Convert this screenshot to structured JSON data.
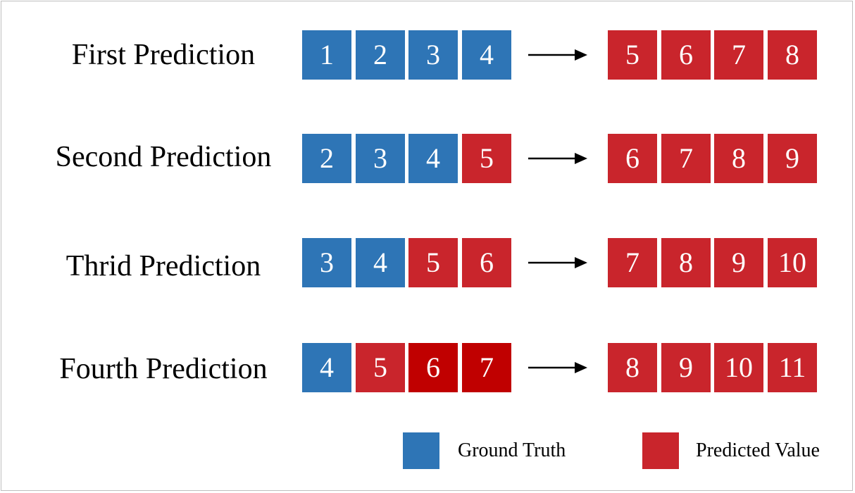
{
  "colors": {
    "ground_truth": "#2e75b6",
    "predicted": "#c9252c",
    "predicted_dark": "#c00000",
    "text_on_cell": "#ffffff"
  },
  "rows": [
    {
      "label": "First Prediction",
      "inputs": [
        {
          "value": "1",
          "kind": "ground_truth"
        },
        {
          "value": "2",
          "kind": "ground_truth"
        },
        {
          "value": "3",
          "kind": "ground_truth"
        },
        {
          "value": "4",
          "kind": "ground_truth"
        }
      ],
      "outputs": [
        "5",
        "6",
        "7",
        "8"
      ]
    },
    {
      "label": "Second Prediction",
      "inputs": [
        {
          "value": "2",
          "kind": "ground_truth"
        },
        {
          "value": "3",
          "kind": "ground_truth"
        },
        {
          "value": "4",
          "kind": "ground_truth"
        },
        {
          "value": "5",
          "kind": "predicted"
        }
      ],
      "outputs": [
        "6",
        "7",
        "8",
        "9"
      ]
    },
    {
      "label": "Thrid Prediction",
      "inputs": [
        {
          "value": "3",
          "kind": "ground_truth"
        },
        {
          "value": "4",
          "kind": "ground_truth"
        },
        {
          "value": "5",
          "kind": "predicted"
        },
        {
          "value": "6",
          "kind": "predicted"
        }
      ],
      "outputs": [
        "7",
        "8",
        "9",
        "10"
      ]
    },
    {
      "label": "Fourth Prediction",
      "inputs": [
        {
          "value": "4",
          "kind": "ground_truth"
        },
        {
          "value": "5",
          "kind": "predicted"
        },
        {
          "value": "6",
          "kind": "predicted_dark"
        },
        {
          "value": "7",
          "kind": "predicted_dark"
        }
      ],
      "outputs": [
        "8",
        "9",
        "10",
        "11"
      ]
    }
  ],
  "legend": {
    "ground_truth_label": "Ground Truth",
    "predicted_label": "Predicted Value"
  }
}
